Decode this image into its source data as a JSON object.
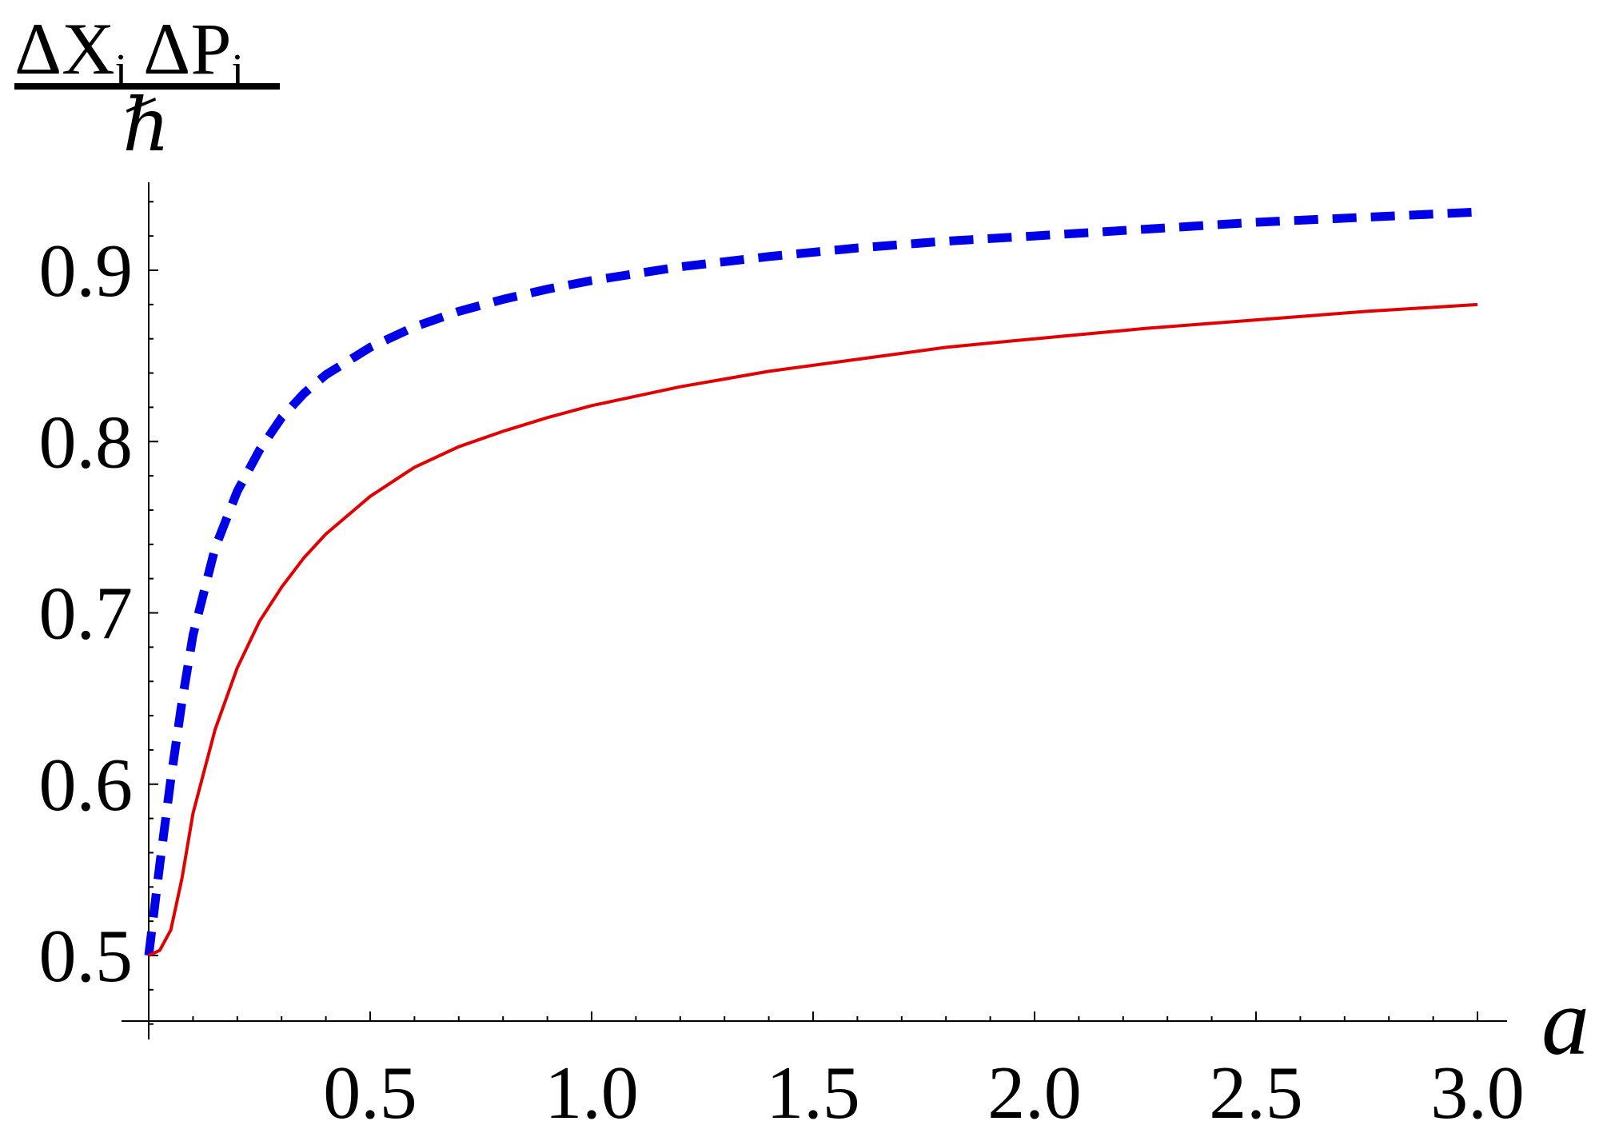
{
  "chart_data": {
    "type": "line",
    "ylabel": {
      "numerator": [
        "ΔX",
        "i",
        "ΔP",
        "i"
      ],
      "denominator": "ℏ"
    },
    "xlabel": "a",
    "xlim": [
      0,
      3.0
    ],
    "ylim": [
      0.45,
      0.95
    ],
    "x_ticks": [
      0.5,
      1.0,
      1.5,
      2.0,
      2.5,
      3.0
    ],
    "x_tick_labels": [
      "0.5",
      "1.0",
      "1.5",
      "2.0",
      "2.5",
      "3.0"
    ],
    "y_ticks": [
      0.5,
      0.6,
      0.7,
      0.8,
      0.9
    ],
    "y_tick_labels": [
      "0.5",
      "0.6",
      "0.7",
      "0.8",
      "0.9"
    ],
    "grid": false,
    "legend": "none",
    "series": [
      {
        "color": "#e00000",
        "style": "solid",
        "x": [
          0,
          0.025,
          0.05,
          0.075,
          0.1,
          0.15,
          0.2,
          0.25,
          0.3,
          0.35,
          0.4,
          0.5,
          0.6,
          0.7,
          0.8,
          0.9,
          1.0,
          1.2,
          1.4,
          1.6,
          1.8,
          2.0,
          2.25,
          2.5,
          2.75,
          3.0
        ],
        "y": [
          0.5,
          0.503,
          0.515,
          0.545,
          0.583,
          0.632,
          0.668,
          0.695,
          0.715,
          0.732,
          0.746,
          0.768,
          0.785,
          0.797,
          0.806,
          0.814,
          0.821,
          0.832,
          0.841,
          0.848,
          0.855,
          0.86,
          0.866,
          0.871,
          0.876,
          0.88
        ]
      },
      {
        "color": "#0000e6",
        "style": "dashed",
        "x": [
          0,
          0.025,
          0.05,
          0.075,
          0.1,
          0.15,
          0.2,
          0.25,
          0.3,
          0.35,
          0.4,
          0.5,
          0.6,
          0.7,
          0.8,
          0.9,
          1.0,
          1.2,
          1.4,
          1.6,
          1.8,
          2.0,
          2.25,
          2.5,
          2.75,
          3.0
        ],
        "y": [
          0.5,
          0.553,
          0.603,
          0.648,
          0.687,
          0.738,
          0.771,
          0.795,
          0.814,
          0.828,
          0.839,
          0.855,
          0.867,
          0.876,
          0.883,
          0.889,
          0.894,
          0.902,
          0.908,
          0.913,
          0.917,
          0.92,
          0.924,
          0.928,
          0.931,
          0.934
        ]
      }
    ]
  }
}
